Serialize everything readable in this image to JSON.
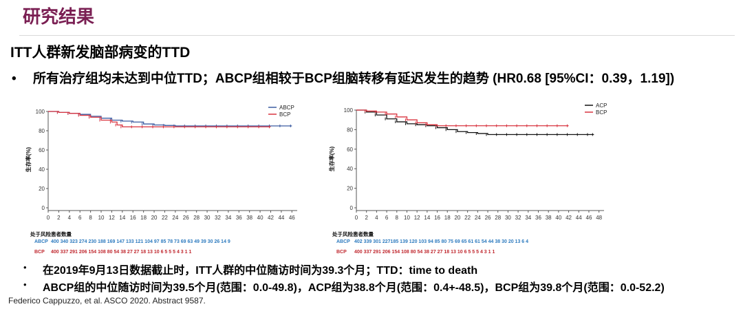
{
  "header": {
    "slide_title": "研究结果",
    "section_title": "ITT人群新发脑部病变的TTD"
  },
  "main_bullet": {
    "marker": "•",
    "text": "所有治疗组均未达到中位TTD；ABCP组相较于BCP组脑转移有延迟发生的趋势 (HR0.68 [95%CI：0.39，1.19])"
  },
  "chart_data": [
    {
      "type": "line",
      "ylabel": "生存率(%)",
      "y_ticks": [
        "0",
        "20",
        "40",
        "60",
        "80",
        "100"
      ],
      "ylim": [
        0,
        100
      ],
      "x_ticks": [
        "0",
        "2",
        "4",
        "6",
        "8",
        "10",
        "12",
        "14",
        "16",
        "18",
        "20",
        "22",
        "24",
        "26",
        "28",
        "30",
        "32",
        "34",
        "36",
        "38",
        "40",
        "42",
        "44",
        "46"
      ],
      "xlim": [
        0,
        47
      ],
      "series": [
        {
          "name": "ABCP",
          "color": "#3a5aa0",
          "x": [
            0,
            2,
            4,
            6,
            8,
            10,
            12,
            14,
            16,
            18,
            20,
            22,
            24,
            26,
            28,
            30,
            32,
            34,
            36,
            38,
            40,
            42,
            44,
            46
          ],
          "y": [
            100,
            99,
            98,
            97,
            95,
            93,
            91,
            90,
            89,
            87,
            86,
            85.5,
            85,
            85,
            85,
            85,
            85,
            85,
            85,
            85,
            85,
            85,
            85,
            85
          ]
        },
        {
          "name": "BCP",
          "color": "#d9333f",
          "x": [
            0,
            2,
            4,
            6,
            8,
            10,
            12,
            13,
            14,
            16,
            18,
            20,
            22,
            24,
            26,
            28,
            30,
            32,
            34,
            36,
            38,
            40,
            42
          ],
          "y": [
            100,
            99,
            98,
            96,
            94,
            91,
            89,
            86,
            84,
            84,
            84,
            84,
            84,
            84,
            84,
            84,
            84,
            84,
            84,
            84,
            84,
            84,
            84
          ]
        }
      ],
      "risk_table": {
        "title": "处于风险患者数量",
        "rows": [
          {
            "label": "ABCP",
            "color": "#2e7bbf",
            "values": "400 340 323 274 230 188 169 147 133 121 104 97 85 78 73 69 63 49 39 30 26 14 9"
          },
          {
            "label": "BCP",
            "color": "#c0282f",
            "values": "400 337 291 206 154 108 80 54 38 27 27 18 13 10 6 5 5 5 4 3 1 1"
          }
        ]
      }
    },
    {
      "type": "line",
      "ylabel": "生存率(%)",
      "y_ticks": [
        "0",
        "20",
        "40",
        "60",
        "80",
        "100"
      ],
      "ylim": [
        0,
        100
      ],
      "x_ticks": [
        "0",
        "2",
        "4",
        "6",
        "8",
        "10",
        "12",
        "14",
        "16",
        "18",
        "20",
        "22",
        "24",
        "26",
        "28",
        "30",
        "32",
        "34",
        "36",
        "38",
        "40",
        "42",
        "44",
        "46",
        "48"
      ],
      "xlim": [
        0,
        49
      ],
      "series": [
        {
          "name": "ACP",
          "color": "#111111",
          "x": [
            0,
            2,
            4,
            6,
            8,
            10,
            12,
            14,
            16,
            18,
            20,
            22,
            24,
            26,
            28,
            30,
            32,
            34,
            36,
            38,
            40,
            42,
            44,
            46,
            47
          ],
          "y": [
            100,
            98,
            95,
            91,
            88,
            86,
            85,
            84,
            82,
            80,
            78,
            77,
            76,
            75,
            75,
            75,
            75,
            75,
            75,
            75,
            75,
            75,
            75,
            75,
            75
          ]
        },
        {
          "name": "BCP",
          "color": "#d9333f",
          "x": [
            0,
            2,
            4,
            6,
            8,
            10,
            12,
            14,
            16,
            18,
            20,
            22,
            24,
            26,
            28,
            30,
            32,
            34,
            36,
            38,
            40,
            42
          ],
          "y": [
            100,
            99,
            98,
            96,
            93,
            90,
            87,
            85,
            84,
            84,
            84,
            84,
            84,
            84,
            84,
            84,
            84,
            84,
            84,
            84,
            84,
            84
          ]
        }
      ],
      "risk_table": {
        "title": "处于风险患者数量",
        "rows": [
          {
            "label": "ABCP",
            "color": "#2e7bbf",
            "values": "402 339 301 227185 139 120 103 94 85 80 75 69 65 61 61 54 44 38 30 20 13 6 4"
          },
          {
            "label": "BCP",
            "color": "#c0282f",
            "values": "400 337 291 206 154 108 80 54 38 27 27 18 13 10 6 5 5 5 4 3 1 1"
          }
        ]
      }
    }
  ],
  "notes": [
    {
      "marker": "•",
      "text": "在2019年9月13日数据截止时，ITT人群的中位随访时间为39.3个月；TTD：time to death"
    },
    {
      "marker": "•",
      "text": "ABCP组的中位随访时间为39.5个月(范围：0.0-49.8)，ACP组为38.8个月(范围：0.4+-48.5)，BCP组为39.8个月(范围：0.0-52.2)"
    }
  ],
  "citation": "Federico Cappuzzo, et al. ASCO 2020. Abstract 9587."
}
